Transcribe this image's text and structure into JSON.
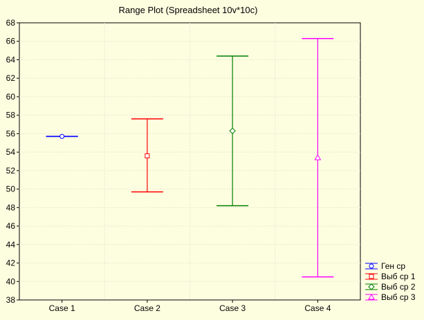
{
  "chart_data": {
    "type": "range",
    "title": "Range Plot (Spreadsheet 10v*10c)",
    "xlabel": "",
    "ylabel": "",
    "categories": [
      "Case 1",
      "Case 2",
      "Case 3",
      "Case 4"
    ],
    "ylim": [
      38,
      68
    ],
    "yticks": [
      38,
      40,
      42,
      44,
      46,
      48,
      50,
      52,
      54,
      56,
      58,
      60,
      62,
      64,
      66,
      68
    ],
    "grid": true,
    "legend_position": "bottom-right",
    "series": [
      {
        "name": "Ген ср",
        "color": "#0000ff",
        "marker": "circle",
        "center": 55.7,
        "low": 55.7,
        "high": 55.7
      },
      {
        "name": "Выб ср 1",
        "color": "#ff0000",
        "marker": "square",
        "center": 53.6,
        "low": 49.7,
        "high": 57.6
      },
      {
        "name": "Выб ср 2",
        "color": "#008000",
        "marker": "diamond",
        "center": 56.3,
        "low": 48.2,
        "high": 64.4
      },
      {
        "name": "Выб ср 3",
        "color": "#ff00ff",
        "marker": "triangle",
        "center": 53.4,
        "low": 40.5,
        "high": 66.3
      }
    ]
  }
}
